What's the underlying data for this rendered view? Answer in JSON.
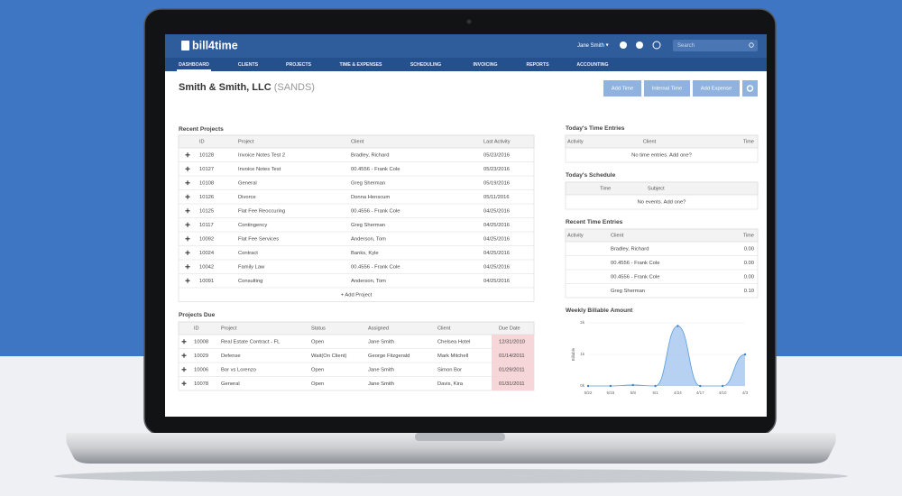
{
  "header": {
    "logo": "bill4time",
    "user": "Jane Smith",
    "search": "Search"
  },
  "nav": [
    "DASHBOARD",
    "CLIENTS",
    "PROJECTS",
    "TIME & EXPENSES",
    "SCHEDULING",
    "INVOICING",
    "REPORTS",
    "ACCOUNTING"
  ],
  "page": {
    "title": "Smith & Smith, LLC",
    "code": "(SANDS)",
    "buttons": [
      "Add Time",
      "Internal Time",
      "Add Expense"
    ]
  },
  "recent_projects": {
    "title": "Recent Projects",
    "columns": [
      "ID",
      "Project",
      "Client",
      "Last Activity"
    ],
    "rows": [
      [
        "10128",
        "Invoice Notes Test 2",
        "Bradley, Richard",
        "05/23/2016"
      ],
      [
        "10127",
        "Invoice Notes Test",
        "00.4556 - Frank Cole",
        "05/23/2016"
      ],
      [
        "10108",
        "General",
        "Greg Sherman",
        "05/19/2016"
      ],
      [
        "10126",
        "Divorce",
        "Donna Henscum",
        "05/11/2016"
      ],
      [
        "10125",
        "Flat Fee Reoccuring",
        "00.4556 - Frank Cole",
        "04/25/2016"
      ],
      [
        "10117",
        "Contingency",
        "Greg Sherman",
        "04/25/2016"
      ],
      [
        "10092",
        "Flat Fee Services",
        "Anderson, Tom",
        "04/25/2016"
      ],
      [
        "10024",
        "Contract",
        "Banks, Kyle",
        "04/25/2016"
      ],
      [
        "10042",
        "Family Law",
        "00.4556 - Frank Cole",
        "04/25/2016"
      ],
      [
        "10091",
        "Consulting",
        "Anderson, Tom",
        "04/25/2016"
      ]
    ],
    "footer": "+ Add Project"
  },
  "projects_due": {
    "title": "Projects Due",
    "columns": [
      "ID",
      "Project",
      "Status",
      "Assigned",
      "Client",
      "Due Date"
    ],
    "rows": [
      [
        "10008",
        "Real Estate Contract - FL",
        "Open",
        "Jane Smith",
        "Chelsea Hotel",
        "12/31/2010"
      ],
      [
        "10029",
        "Defense",
        "Wait(On Client)",
        "George Fitzgerald",
        "Mark Mitchell",
        "01/14/2011"
      ],
      [
        "10006",
        "Bor vs Lorenzo",
        "Open",
        "Jane Smith",
        "Simon Bor",
        "01/29/2011"
      ],
      [
        "10078",
        "General",
        "Open",
        "Jane Smith",
        "Davis, Kira",
        "01/31/2011"
      ]
    ]
  },
  "todays_time_entries": {
    "title": "Today's Time Entries",
    "columns": [
      "Activity",
      "Client",
      "Time"
    ],
    "empty": "No time entries. Add one?"
  },
  "todays_schedule": {
    "title": "Today's Schedule",
    "columns": [
      "Time",
      "Subject"
    ],
    "empty": "No events. Add one?"
  },
  "recent_time_entries": {
    "title": "Recent Time Entries",
    "columns": [
      "Activity",
      "Client",
      "Time"
    ],
    "rows": [
      [
        "Bradley, Richard",
        "0.00"
      ],
      [
        "00.4556 - Frank Cole",
        "0.00"
      ],
      [
        "00.4556 - Frank Cole",
        "0.00"
      ],
      [
        "Greg Sherman",
        "0.10"
      ]
    ]
  },
  "chart_data": {
    "type": "area",
    "title": "Weekly Billable Amount",
    "y_label": "Billable",
    "categories": [
      "5/22",
      "5/15",
      "5/8",
      "5/1",
      "4/24",
      "4/17",
      "4/10",
      "4/3"
    ],
    "values": [
      0,
      0,
      30,
      0,
      1900,
      0,
      0,
      1000
    ],
    "color": "#a9c9ee",
    "ylim": [
      0,
      2000
    ],
    "yticks": [
      {
        "value": 0,
        "label": "0k"
      },
      {
        "value": 1000,
        "label": "1k"
      },
      {
        "value": 2000,
        "label": "2k"
      }
    ],
    "grid": true
  }
}
